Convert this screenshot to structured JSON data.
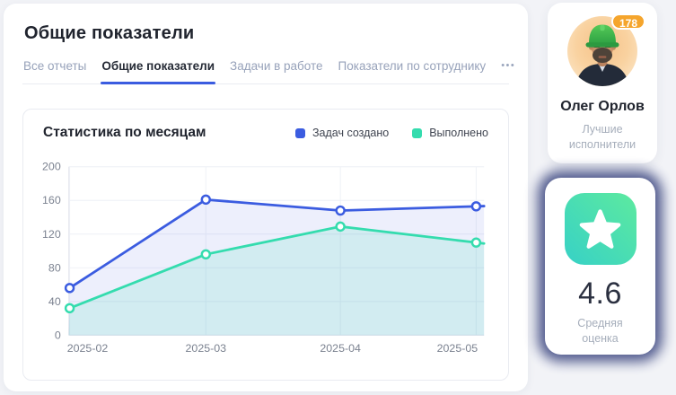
{
  "page": {
    "title": "Общие показатели",
    "tabs_more_label": "•••"
  },
  "tabs": [
    {
      "label": "Все отчеты",
      "active": false
    },
    {
      "label": "Общие показатели",
      "active": true
    },
    {
      "label": "Задачи в работе",
      "active": false
    },
    {
      "label": "Показатели по сотруднику",
      "active": false
    }
  ],
  "chart_card": {
    "title": "Статистика по месяцам"
  },
  "chart_data": {
    "type": "line",
    "title": "Статистика по месяцам",
    "x": [
      "2025-02",
      "2025-03",
      "2025-04",
      "2025-05"
    ],
    "series": [
      {
        "name": "Задач создано",
        "color": "#3b5ce0",
        "area": "rgba(76,99,222,0.10)",
        "values": [
          56,
          161,
          148,
          153
        ]
      },
      {
        "name": "Выполнено",
        "color": "#34dcae",
        "area": "rgba(52,220,174,0.14)",
        "values": [
          32,
          96,
          129,
          110
        ]
      }
    ],
    "ylim": [
      0,
      200
    ],
    "ytick_step": 40,
    "grid": true,
    "legend_position": "top-right",
    "marker": "open-circle"
  },
  "performer_card": {
    "badge_count": "178",
    "name": "Олег Орлов",
    "subtitle": "Лучшие исполнители"
  },
  "rating_card": {
    "value": "4.6",
    "label": "Средняя оценка",
    "icon": "star-icon"
  },
  "colors": {
    "accent_blue": "#3b5ce0",
    "accent_teal": "#34dcae",
    "badge_orange": "#f5a52c",
    "glow_indigo": "#475187"
  }
}
